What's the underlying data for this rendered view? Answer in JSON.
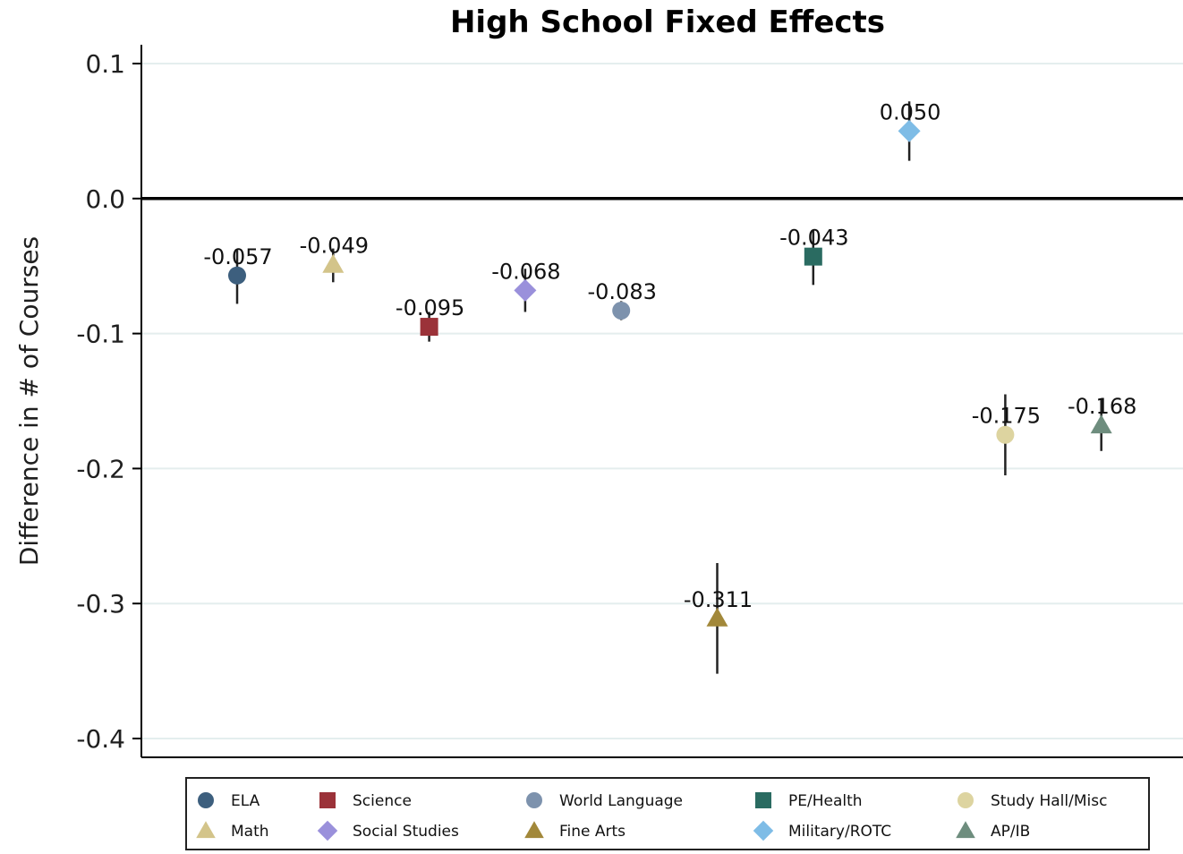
{
  "chart_data": {
    "type": "scatter",
    "title": "High School Fixed Effects",
    "xlabel": "",
    "ylabel": "Difference in # of Courses",
    "ylim": [
      -0.4,
      0.1
    ],
    "yticks": [
      0.1,
      0.0,
      -0.1,
      -0.2,
      -0.3,
      -0.4
    ],
    "ytick_labels": [
      "0.1",
      "0.0",
      "-0.1",
      "-0.2",
      "-0.3",
      "-0.4"
    ],
    "grid": true,
    "zero_line": true,
    "legend_position": "bottom",
    "series": [
      {
        "name": "ELA",
        "value": -0.057,
        "label": "-0.057",
        "ci": [
          -0.078,
          -0.038
        ],
        "marker": "circle",
        "color": "#3d5f7e"
      },
      {
        "name": "Math",
        "value": -0.049,
        "label": "-0.049",
        "ci": [
          -0.062,
          -0.037
        ],
        "marker": "triangle",
        "color": "#d3c48a"
      },
      {
        "name": "Science",
        "value": -0.095,
        "label": "-0.095",
        "ci": [
          -0.106,
          -0.084
        ],
        "marker": "square",
        "color": "#9b3239"
      },
      {
        "name": "Social Studies",
        "value": -0.068,
        "label": "-0.068",
        "ci": [
          -0.084,
          -0.052
        ],
        "marker": "diamond",
        "color": "#9a90db"
      },
      {
        "name": "World Language",
        "value": -0.083,
        "label": "-0.083",
        "ci": [
          -0.09,
          -0.076
        ],
        "marker": "circle",
        "color": "#7d92ad"
      },
      {
        "name": "Fine Arts",
        "value": -0.311,
        "label": "-0.311",
        "ci": [
          -0.352,
          -0.27
        ],
        "marker": "triangle",
        "color": "#a2883a"
      },
      {
        "name": "PE/Health",
        "value": -0.043,
        "label": "-0.043",
        "ci": [
          -0.064,
          -0.023
        ],
        "marker": "square",
        "color": "#2a6b61"
      },
      {
        "name": "Military/ROTC",
        "value": 0.05,
        "label": "0.050",
        "ci": [
          0.028,
          0.072
        ],
        "marker": "diamond",
        "color": "#7ebce6"
      },
      {
        "name": "Study Hall/Misc",
        "value": -0.175,
        "label": "-0.175",
        "ci": [
          -0.205,
          -0.145
        ],
        "marker": "circle",
        "color": "#ddd4a0"
      },
      {
        "name": "AP/IB",
        "value": -0.168,
        "label": "-0.168",
        "ci": [
          -0.187,
          -0.149
        ],
        "marker": "triangle",
        "color": "#6e8d7e"
      }
    ]
  }
}
